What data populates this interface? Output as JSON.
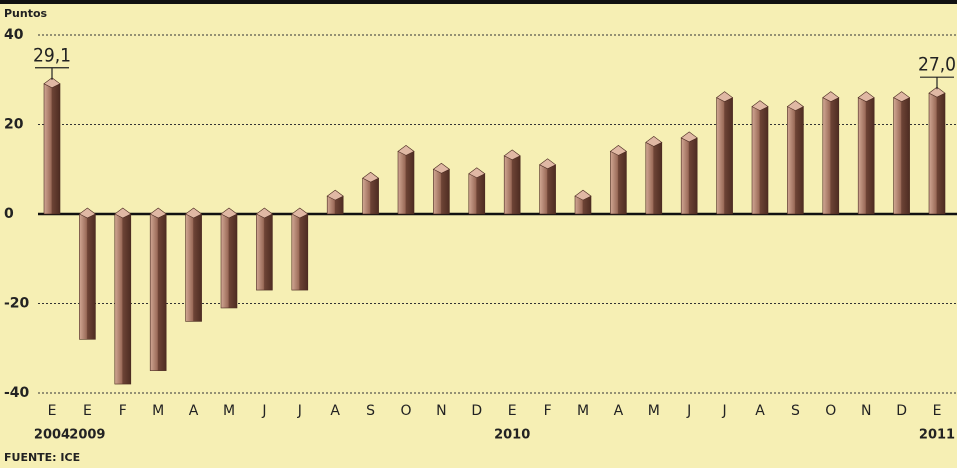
{
  "chart_data": {
    "type": "bar",
    "unit_label": "Puntos",
    "source": "FUENTE: ICE",
    "categories": [
      "E",
      "E",
      "F",
      "M",
      "A",
      "M",
      "J",
      "J",
      "A",
      "S",
      "O",
      "N",
      "D",
      "E",
      "F",
      "M",
      "A",
      "M",
      "J",
      "J",
      "A",
      "S",
      "O",
      "N",
      "D",
      "E"
    ],
    "years": [
      "2004",
      "2009",
      null,
      null,
      null,
      null,
      null,
      null,
      null,
      null,
      null,
      null,
      null,
      "2010",
      null,
      null,
      null,
      null,
      null,
      null,
      null,
      null,
      null,
      null,
      null,
      "2011"
    ],
    "values": [
      29.1,
      -28,
      -38,
      -35,
      -24,
      -21,
      -17,
      -17,
      4,
      8,
      14,
      10,
      9,
      13,
      11,
      4,
      14,
      16,
      17,
      26,
      24,
      24,
      26,
      26,
      26,
      27.0
    ],
    "value_labels": [
      "29,1",
      null,
      null,
      null,
      null,
      null,
      null,
      null,
      null,
      null,
      null,
      null,
      null,
      null,
      null,
      null,
      null,
      null,
      null,
      null,
      null,
      null,
      null,
      null,
      null,
      "27,0"
    ],
    "color": "#8a5848",
    "ylim": [
      -40,
      40
    ],
    "yticks": [
      40,
      20,
      0,
      -20,
      -40
    ],
    "grid": true
  }
}
